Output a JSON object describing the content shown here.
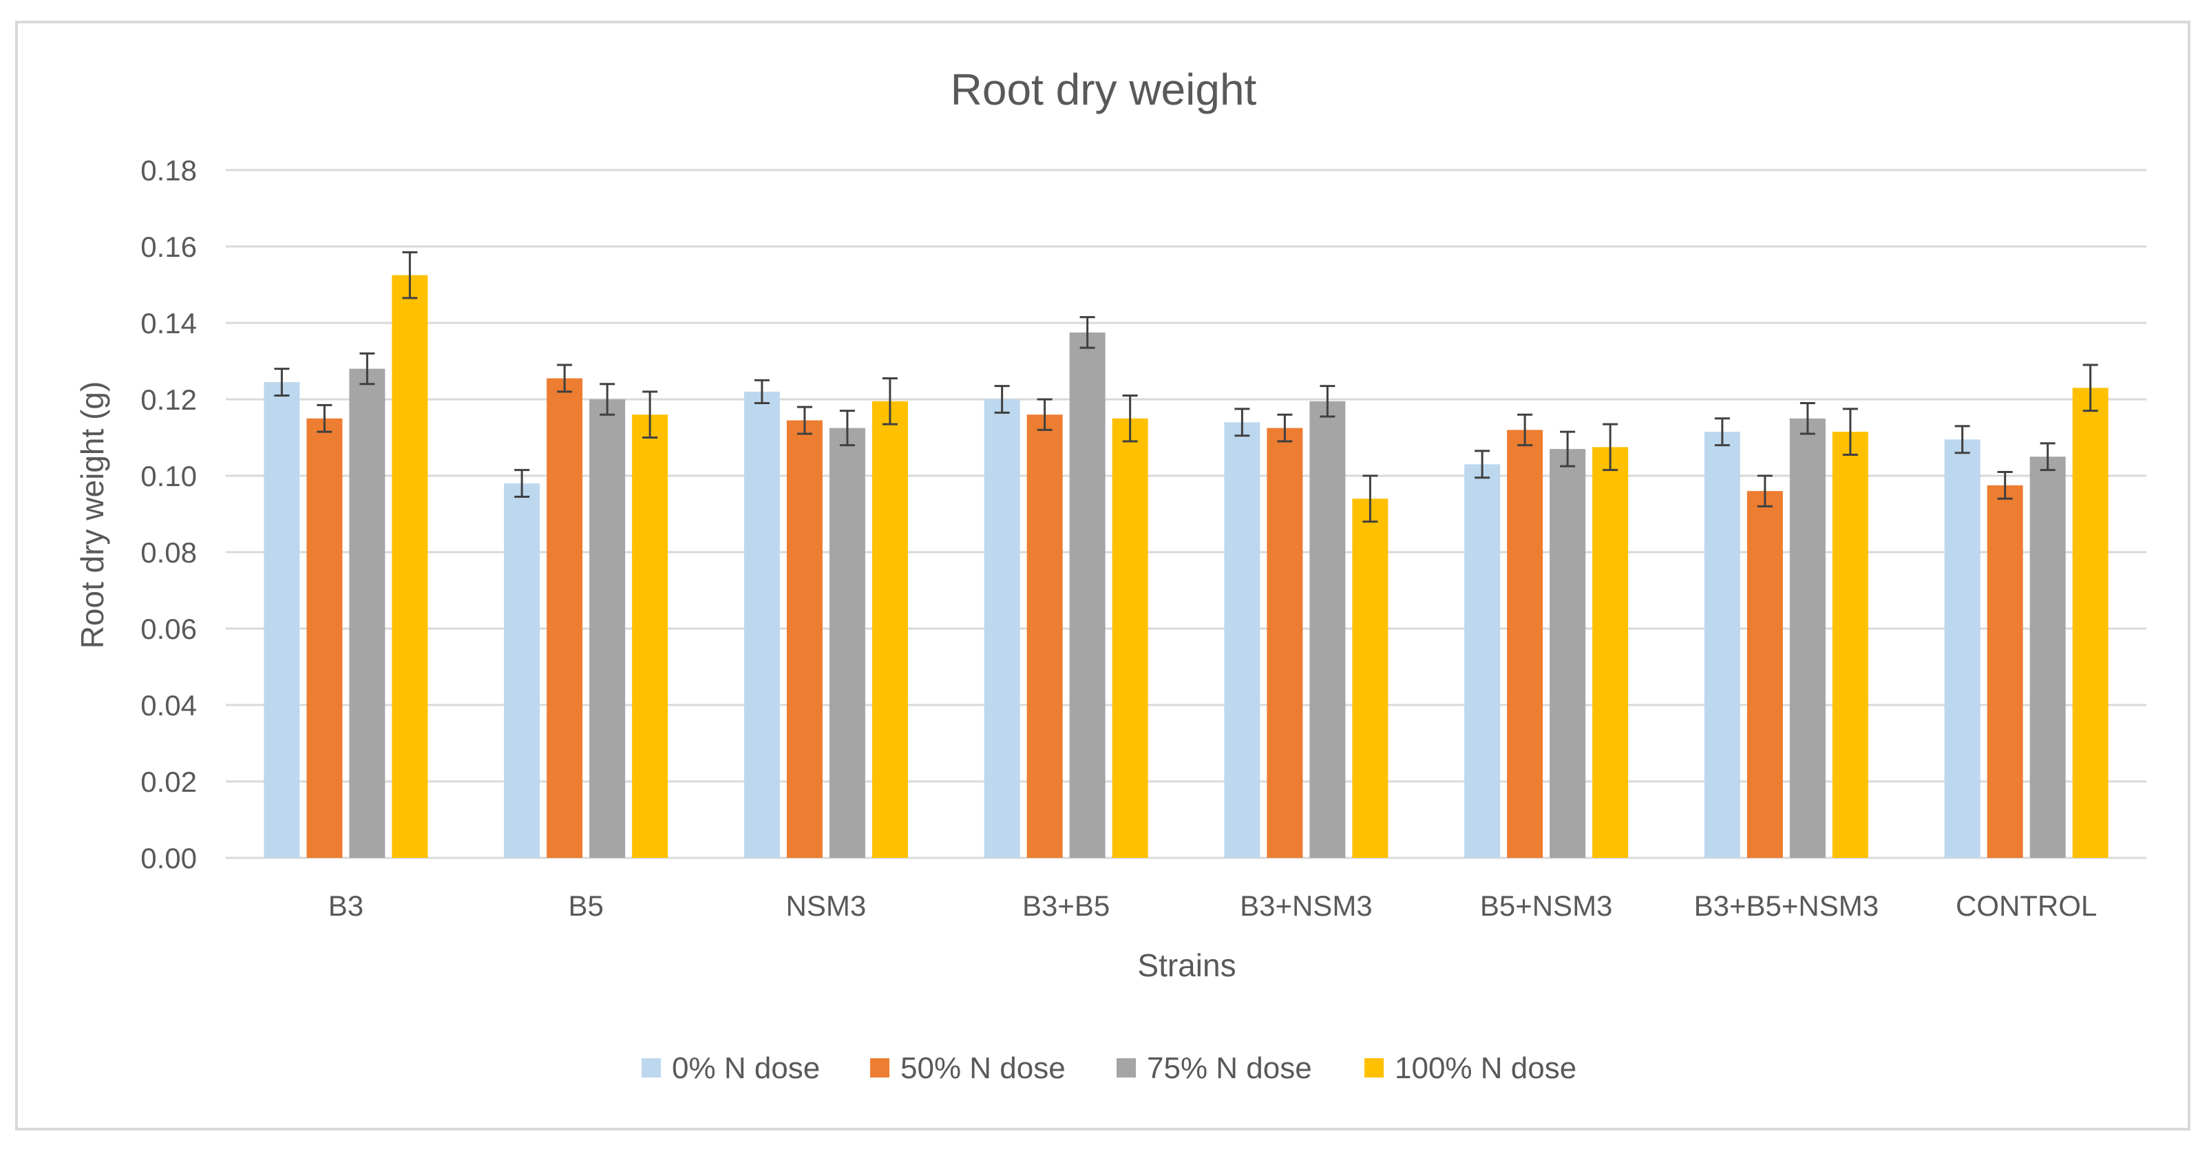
{
  "chart_data": {
    "type": "bar",
    "title": "Root dry weight",
    "xlabel": "Strains",
    "ylabel": "Root dry weight (g)",
    "ylim": [
      0,
      0.18
    ],
    "yticks": [
      "0.00",
      "0.02",
      "0.04",
      "0.06",
      "0.08",
      "0.10",
      "0.12",
      "0.14",
      "0.16",
      "0.18"
    ],
    "grid": true,
    "legend_position": "bottom",
    "categories": [
      "B3",
      "B5",
      "NSM3",
      "B3+B5",
      "B3+NSM3",
      "B5+NSM3",
      "B3+B5+NSM3",
      "CONTROL"
    ],
    "series": [
      {
        "name": "0% N dose",
        "color": "#BDD7EE",
        "values": [
          0.1245,
          0.098,
          0.122,
          0.12,
          0.114,
          0.103,
          0.1115,
          0.1095
        ],
        "errors": [
          0.0035,
          0.0035,
          0.003,
          0.0035,
          0.0035,
          0.0035,
          0.0035,
          0.0035
        ]
      },
      {
        "name": "50% N dose",
        "color": "#ED7D31",
        "values": [
          0.115,
          0.1255,
          0.1145,
          0.116,
          0.1125,
          0.112,
          0.096,
          0.0975
        ],
        "errors": [
          0.0035,
          0.0035,
          0.0035,
          0.004,
          0.0035,
          0.004,
          0.004,
          0.0035
        ]
      },
      {
        "name": "75% N dose",
        "color": "#A5A5A5",
        "values": [
          0.128,
          0.12,
          0.1125,
          0.1375,
          0.1195,
          0.107,
          0.115,
          0.105
        ],
        "errors": [
          0.004,
          0.004,
          0.0045,
          0.004,
          0.004,
          0.0045,
          0.004,
          0.0035
        ]
      },
      {
        "name": "100% N dose",
        "color": "#FFC000",
        "values": [
          0.1525,
          0.116,
          0.1195,
          0.115,
          0.094,
          0.1075,
          0.1115,
          0.123
        ],
        "errors": [
          0.006,
          0.006,
          0.006,
          0.006,
          0.006,
          0.006,
          0.006,
          0.006
        ]
      }
    ]
  }
}
